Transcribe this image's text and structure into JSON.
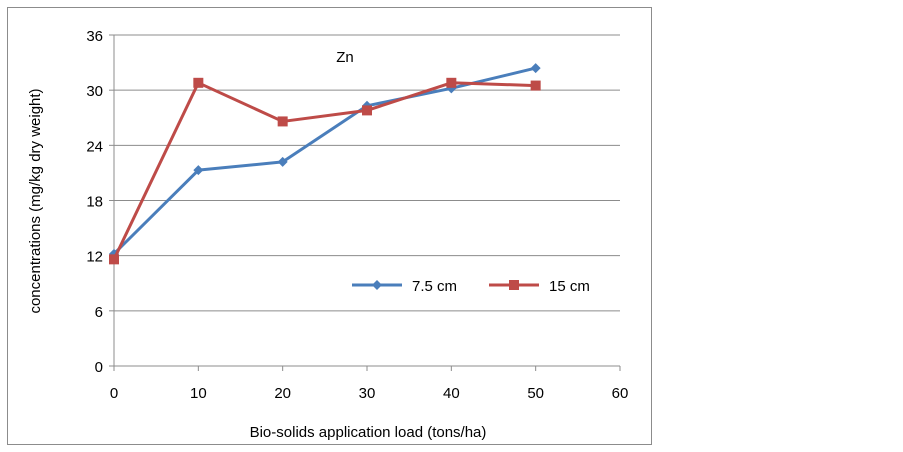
{
  "chart_data": {
    "type": "line",
    "title": "Zn",
    "xlabel": "Bio-solids application load (tons/ha)",
    "ylabel": "concentrations (mg/kg dry weight)",
    "xlim": [
      0,
      60
    ],
    "ylim": [
      0,
      36
    ],
    "xticks": [
      0,
      10,
      20,
      30,
      40,
      50,
      60
    ],
    "yticks": [
      0,
      6,
      12,
      18,
      24,
      30,
      36
    ],
    "grid": "horizontal",
    "legend_position": "bottom-right",
    "series": [
      {
        "name": "7.5 cm",
        "color": "#4a7ebb",
        "marker": "diamond",
        "x": [
          0,
          10,
          20,
          30,
          40,
          50
        ],
        "y": [
          12.2,
          21.3,
          22.2,
          28.3,
          30.2,
          32.4
        ]
      },
      {
        "name": "15 cm",
        "color": "#be4b48",
        "marker": "square",
        "x": [
          0,
          10,
          20,
          30,
          40,
          50
        ],
        "y": [
          11.6,
          30.8,
          26.6,
          27.8,
          30.8,
          30.5
        ]
      }
    ]
  }
}
